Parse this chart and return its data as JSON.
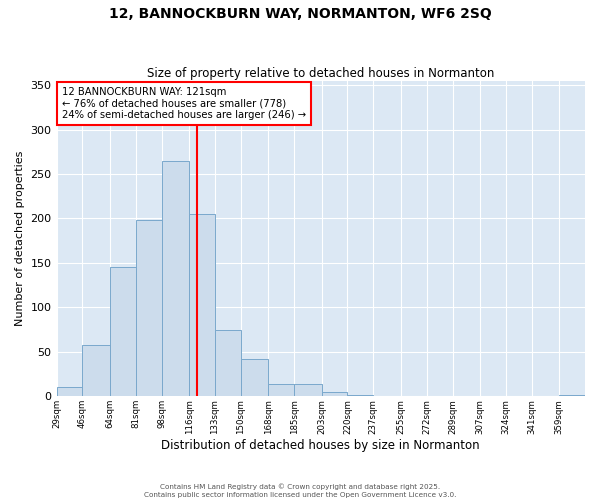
{
  "title1": "12, BANNOCKBURN WAY, NORMANTON, WF6 2SQ",
  "title2": "Size of property relative to detached houses in Normanton",
  "xlabel": "Distribution of detached houses by size in Normanton",
  "ylabel": "Number of detached properties",
  "bar_color": "#ccdcec",
  "bar_edge_color": "#7aa8cc",
  "background_color": "#dce8f4",
  "vline_x": 121,
  "vline_color": "red",
  "annotation_line1": "12 BANNOCKBURN WAY: 121sqm",
  "annotation_line2": "← 76% of detached houses are smaller (778)",
  "annotation_line3": "24% of semi-detached houses are larger (246) →",
  "bin_edges": [
    29,
    46,
    64,
    81,
    98,
    116,
    133,
    150,
    168,
    185,
    203,
    220,
    237,
    255,
    272,
    289,
    307,
    324,
    341,
    359,
    376
  ],
  "bar_heights": [
    10,
    58,
    145,
    198,
    265,
    205,
    75,
    42,
    14,
    14,
    5,
    2,
    0,
    0,
    0,
    0,
    0,
    0,
    0,
    1
  ],
  "ylim": [
    0,
    355
  ],
  "yticks": [
    0,
    50,
    100,
    150,
    200,
    250,
    300,
    350
  ],
  "footer1": "Contains HM Land Registry data © Crown copyright and database right 2025.",
  "footer2": "Contains public sector information licensed under the Open Government Licence v3.0."
}
